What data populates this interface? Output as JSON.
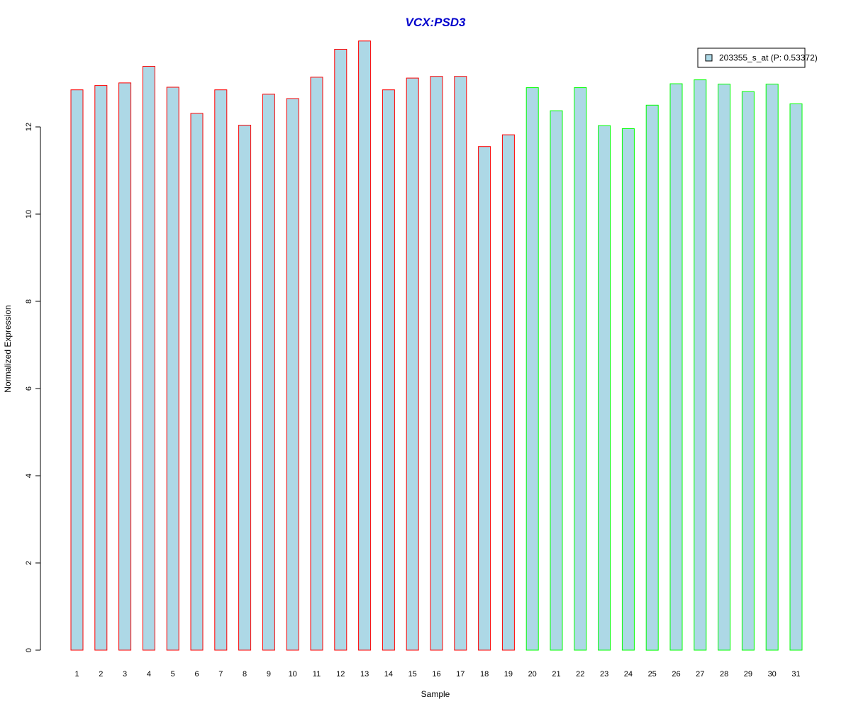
{
  "chart_data": {
    "type": "bar",
    "title": "VCX:PSD3",
    "xlabel": "Sample",
    "ylabel": "Normalized Expression",
    "categories": [
      "1",
      "2",
      "3",
      "4",
      "5",
      "6",
      "7",
      "8",
      "9",
      "10",
      "11",
      "12",
      "13",
      "14",
      "15",
      "16",
      "17",
      "18",
      "19",
      "20",
      "21",
      "22",
      "23",
      "24",
      "25",
      "26",
      "27",
      "28",
      "29",
      "30",
      "31"
    ],
    "values": [
      12.85,
      12.95,
      13.01,
      13.39,
      12.91,
      12.31,
      12.85,
      12.04,
      12.75,
      12.65,
      13.14,
      13.78,
      13.97,
      12.85,
      13.12,
      13.16,
      13.16,
      11.55,
      11.82,
      12.9,
      12.37,
      12.9,
      12.03,
      11.96,
      12.5,
      12.99,
      13.08,
      12.98,
      12.81,
      12.98,
      12.53
    ],
    "group_border_colors": [
      "#ff0000",
      "#ff0000",
      "#ff0000",
      "#ff0000",
      "#ff0000",
      "#ff0000",
      "#ff0000",
      "#ff0000",
      "#ff0000",
      "#ff0000",
      "#ff0000",
      "#ff0000",
      "#ff0000",
      "#ff0000",
      "#ff0000",
      "#ff0000",
      "#ff0000",
      "#ff0000",
      "#ff0000",
      "#00ff00",
      "#00ff00",
      "#00ff00",
      "#00ff00",
      "#00ff00",
      "#00ff00",
      "#00ff00",
      "#00ff00",
      "#00ff00",
      "#00ff00",
      "#00ff00",
      "#00ff00"
    ],
    "bar_fill": "#add8e6",
    "title_color": "#0000cc",
    "ylim": [
      0,
      14
    ],
    "yticks": [
      0,
      2,
      4,
      6,
      8,
      10,
      12
    ],
    "grid": false,
    "legend": {
      "entries": [
        {
          "label": "203355_s_at (P: 0.53372)",
          "color": "#add8e6"
        }
      ],
      "placement": "top-right"
    }
  }
}
